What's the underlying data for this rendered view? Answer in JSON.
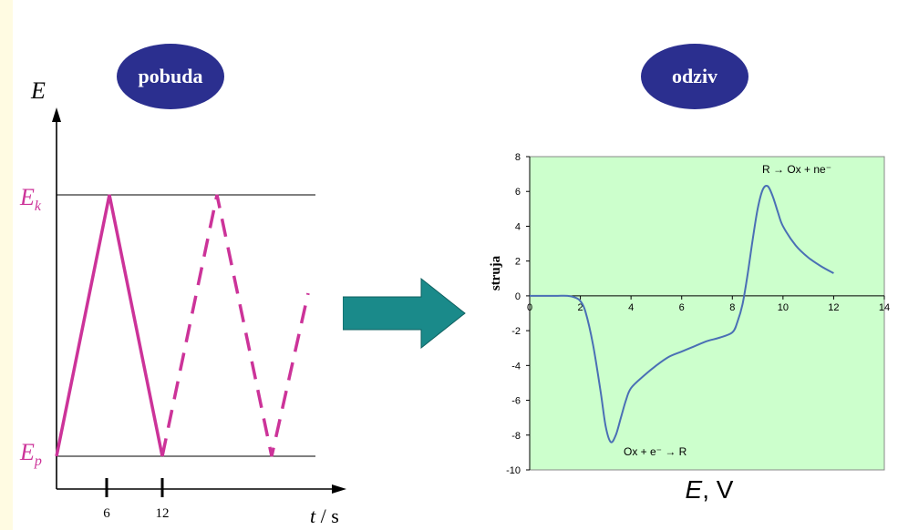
{
  "colors": {
    "excitation_line": "#cc3399",
    "oval_fill": "#2b2f8f",
    "arrow_fill": "#1a8a8a",
    "plot_bg": "#ccffcc",
    "curve": "#4a6fb5"
  },
  "excitation": {
    "oval_label": "pobuda",
    "y_axis_label": "E",
    "ek_label_main": "E",
    "ek_label_sub": "k",
    "ep_label_main": "E",
    "ep_label_sub": "p",
    "x_axis_label_italic": "t",
    "x_axis_label_rest": " / s",
    "x_ticks": [
      "6",
      "12"
    ]
  },
  "response": {
    "oval_label": "odziv",
    "x_label_italic": "E",
    "x_label_rest": ", V"
  },
  "chart_data": {
    "type": "line",
    "title": "",
    "xlabel": "E, V",
    "ylabel": "struja",
    "xlim": [
      0,
      14
    ],
    "ylim": [
      -10,
      8
    ],
    "x_ticks": [
      0,
      2,
      4,
      6,
      8,
      10,
      12,
      14
    ],
    "y_ticks": [
      8,
      6,
      4,
      2,
      0,
      -2,
      -4,
      -6,
      -8,
      -10
    ],
    "grid": false,
    "annotations": [
      "R → Ox + ne⁻",
      "Ox + e⁻ → R"
    ],
    "series": [
      {
        "x": [
          0,
          1,
          1.5,
          1.8,
          2,
          2.2,
          2.5,
          2.8,
          3.0,
          3.2,
          3.4,
          3.6,
          3.8,
          4,
          4.5,
          5,
          5.5,
          6,
          6.5,
          7,
          7.5,
          8,
          8.2,
          8.4,
          8.6,
          8.8,
          9.0,
          9.2,
          9.4,
          9.6,
          9.8,
          10,
          10.5,
          11,
          11.5,
          12
        ],
        "y": [
          0,
          0,
          0,
          -0.1,
          -0.3,
          -0.9,
          -2.8,
          -5.5,
          -7.5,
          -8.4,
          -8.0,
          -7.0,
          -6.0,
          -5.3,
          -4.6,
          -4.0,
          -3.5,
          -3.2,
          -2.9,
          -2.6,
          -2.4,
          -2.1,
          -1.5,
          -0.5,
          1.2,
          3.2,
          5.0,
          6.1,
          6.3,
          5.7,
          4.8,
          4.0,
          2.9,
          2.2,
          1.7,
          1.3
        ]
      }
    ]
  }
}
